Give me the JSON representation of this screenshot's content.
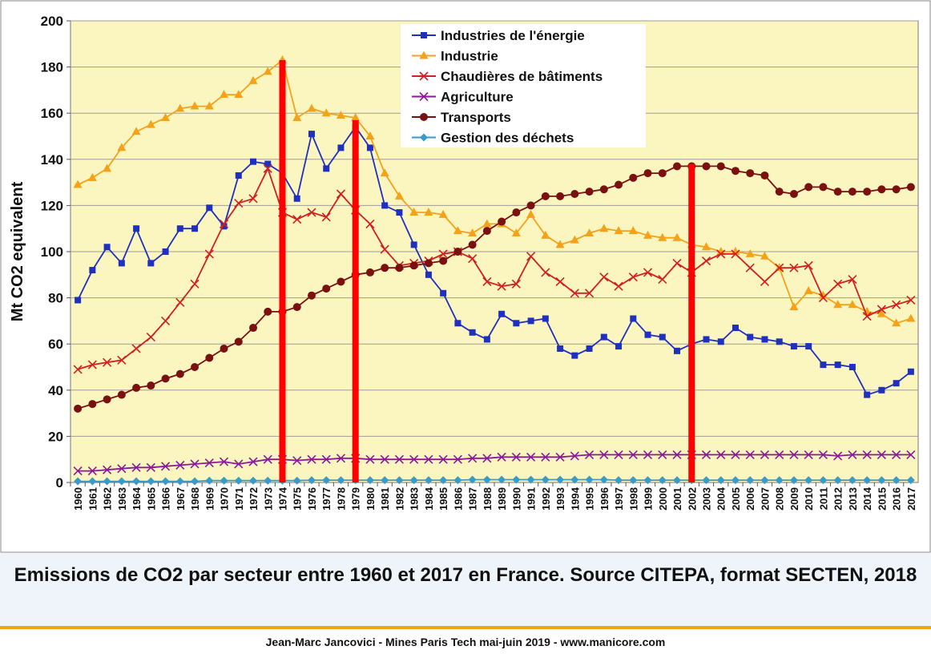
{
  "caption": "Emissions de CO2 par secteur entre 1960 et 2017 en France. Source CITEPA, format SECTEN, 2018",
  "footer": "Jean-Marc Jancovici - Mines Paris Tech mai-juin 2019 - www.manicore.com",
  "chart_data": {
    "type": "line",
    "title": "",
    "xlabel": "",
    "ylabel": "Mt CO2 equivalent",
    "ylim": [
      0,
      200
    ],
    "yticks": [
      0,
      20,
      40,
      60,
      80,
      100,
      120,
      140,
      160,
      180,
      200
    ],
    "grid": true,
    "legend_position": "top-center",
    "background_color": "#fbf6c0",
    "x": [
      "1960",
      "1961",
      "1962",
      "1963",
      "1964",
      "1965",
      "1966",
      "1967",
      "1968",
      "1969",
      "1970",
      "1971",
      "1972",
      "1973",
      "1974",
      "1975",
      "1976",
      "1977",
      "1978",
      "1979",
      "1980",
      "1981",
      "1982",
      "1983",
      "1984",
      "1985",
      "1986",
      "1987",
      "1988",
      "1989",
      "1990",
      "1991",
      "1992",
      "1993",
      "1994",
      "1995",
      "1996",
      "1997",
      "1998",
      "1999",
      "2000",
      "2001",
      "2002",
      "2003",
      "2004",
      "2005",
      "2006",
      "2007",
      "2008",
      "2009",
      "2010",
      "2011",
      "2012",
      "2013",
      "2014",
      "2015",
      "2016",
      "2017"
    ],
    "series": [
      {
        "name": "Industries de l'énergie",
        "color": "#1f2fbf",
        "marker": "square",
        "values": [
          79,
          92,
          102,
          95,
          110,
          95,
          100,
          110,
          110,
          119,
          111,
          133,
          139,
          138,
          134,
          123,
          151,
          136,
          145,
          154,
          145,
          120,
          117,
          103,
          90,
          82,
          69,
          65,
          62,
          73,
          69,
          70,
          71,
          58,
          55,
          58,
          63,
          59,
          71,
          64,
          63,
          57,
          60,
          62,
          61,
          67,
          63,
          62,
          61,
          59,
          59,
          51,
          51,
          50,
          38,
          40,
          43,
          48
        ]
      },
      {
        "name": "Industrie",
        "color": "#f5a21b",
        "marker": "triangle",
        "values": [
          129,
          132,
          136,
          145,
          152,
          155,
          158,
          162,
          163,
          163,
          168,
          168,
          174,
          178,
          183,
          158,
          162,
          160,
          159,
          158,
          150,
          134,
          124,
          117,
          117,
          116,
          109,
          108,
          112,
          112,
          108,
          116,
          107,
          103,
          105,
          108,
          110,
          109,
          109,
          107,
          106,
          106,
          103,
          102,
          100,
          100,
          99,
          98,
          93,
          76,
          83,
          81,
          77,
          77,
          74,
          73,
          69,
          71
        ]
      },
      {
        "name": "Chaudières de bâtiments",
        "color": "#d02020",
        "marker": "x",
        "values": [
          49,
          51,
          52,
          53,
          58,
          63,
          70,
          78,
          86,
          99,
          112,
          121,
          123,
          136,
          117,
          114,
          117,
          115,
          125,
          118,
          112,
          101,
          94,
          95,
          96,
          99,
          100,
          97,
          87,
          85,
          86,
          98,
          91,
          87,
          82,
          82,
          89,
          85,
          89,
          91,
          88,
          95,
          91,
          96,
          99,
          99,
          93,
          87,
          93,
          93,
          94,
          80,
          86,
          88,
          72,
          75,
          77,
          79
        ]
      },
      {
        "name": "Agriculture",
        "color": "#8a1a9a",
        "marker": "x",
        "values": [
          5,
          5,
          5.5,
          6,
          6.5,
          6.5,
          7,
          7.5,
          8,
          8.5,
          9,
          8,
          9,
          10,
          10,
          9.5,
          10,
          10,
          10.5,
          10.5,
          10,
          10,
          10,
          10,
          10,
          10,
          10,
          10.5,
          10.5,
          11,
          11,
          11,
          11,
          11,
          11.5,
          12,
          12,
          12,
          12,
          12,
          12,
          12,
          12,
          12,
          12,
          12,
          12,
          12,
          12,
          12,
          12,
          12,
          11.5,
          12,
          12,
          12,
          12,
          12
        ]
      },
      {
        "name": "Transports",
        "color": "#7a1010",
        "marker": "circle",
        "values": [
          32,
          34,
          36,
          38,
          41,
          42,
          45,
          47,
          50,
          54,
          58,
          61,
          67,
          74,
          74,
          76,
          81,
          84,
          87,
          90,
          91,
          93,
          93,
          94,
          95,
          96,
          100,
          103,
          109,
          113,
          117,
          120,
          124,
          124,
          125,
          126,
          127,
          129,
          132,
          134,
          134,
          137,
          137,
          137,
          137,
          135,
          134,
          133,
          126,
          125,
          128,
          128,
          126,
          126,
          126,
          127,
          127,
          128
        ]
      },
      {
        "name": "Gestion des déchets",
        "color": "#3a9ac8",
        "marker": "diamond",
        "values": [
          0.5,
          0.5,
          0.5,
          0.5,
          0.5,
          0.5,
          0.5,
          0.5,
          0.5,
          0.8,
          0.8,
          0.8,
          0.8,
          0.8,
          0.8,
          0.8,
          1,
          1,
          1,
          1,
          1,
          1,
          1,
          1,
          1,
          1,
          1,
          1.2,
          1.2,
          1.2,
          1.2,
          1.2,
          1.2,
          1.2,
          1.2,
          1.2,
          1.2,
          1,
          1,
          1,
          1,
          1,
          1,
          1,
          1,
          1,
          1,
          1,
          1,
          1,
          1,
          1,
          1,
          1,
          1,
          1,
          1,
          1
        ]
      }
    ],
    "annotations": {
      "vertical_markers": [
        {
          "x": "1974",
          "y_top": 183,
          "color": "#ff0000"
        },
        {
          "x": "1979",
          "y_top": 157,
          "color": "#ff0000"
        },
        {
          "x": "2002",
          "y_top": 138,
          "color": "#ff0000"
        }
      ]
    }
  }
}
